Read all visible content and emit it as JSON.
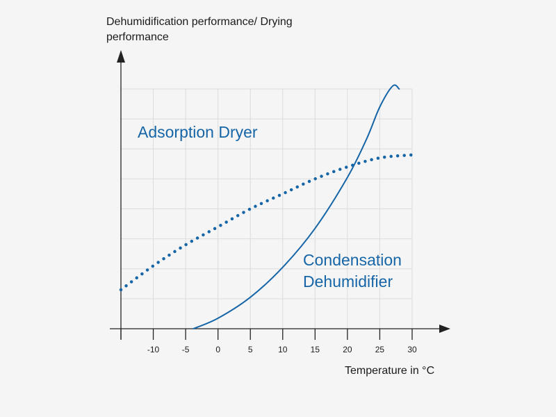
{
  "chart_data": {
    "type": "line",
    "ylabel": "Dehumidification performance/ Drying performance",
    "xlabel": "Temperature in °C",
    "xlim": [
      -15,
      30
    ],
    "ylim": [
      0,
      8
    ],
    "x_ticks": [
      -10,
      -5,
      0,
      5,
      10,
      15,
      20,
      25,
      30
    ],
    "grid": true,
    "y_tick_labels": false,
    "series": [
      {
        "name": "Adsorption Dryer",
        "style": "dotted",
        "color": "#1565a7",
        "x": [
          -15,
          -10,
          -5,
          0,
          5,
          10,
          15,
          20,
          25,
          30
        ],
        "y": [
          1.3,
          2.1,
          2.8,
          3.4,
          4.0,
          4.5,
          5.0,
          5.4,
          5.7,
          5.8
        ]
      },
      {
        "name": "Condensation Dehumidifier",
        "style": "solid",
        "color": "#1565a7",
        "x": [
          -3.8,
          0,
          5,
          10,
          15,
          20,
          23,
          25,
          27,
          28
        ],
        "y": [
          0,
          0.35,
          1.05,
          2.05,
          3.35,
          5.05,
          6.35,
          7.4,
          8.1,
          8.0
        ]
      }
    ]
  }
}
